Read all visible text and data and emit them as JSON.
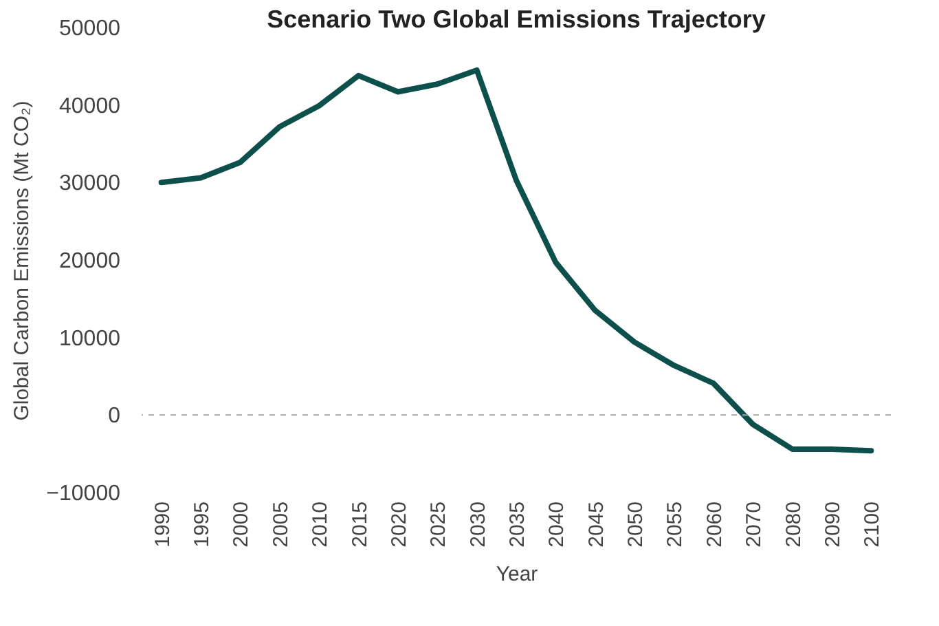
{
  "chart_data": {
    "type": "line",
    "title": "Scenario Two Global Emissions Trajectory",
    "xlabel": "Year",
    "ylabel": "Global Carbon Emissions (Mt CO₂)",
    "categories": [
      "1990",
      "1995",
      "2000",
      "2005",
      "2010",
      "2015",
      "2020",
      "2025",
      "2030",
      "2035",
      "2040",
      "2045",
      "2050",
      "2055",
      "2060",
      "2070",
      "2080",
      "2090",
      "2100"
    ],
    "series": [
      {
        "color": "#0d4f4a",
        "values": [
          30000,
          30600,
          32600,
          37200,
          39900,
          43800,
          41700,
          42700,
          44500,
          30300,
          19700,
          13500,
          9400,
          6400,
          4100,
          -1200,
          -4400,
          -4400,
          -4600
        ]
      }
    ],
    "ylim": [
      -10000,
      50000
    ],
    "yticks": [
      -10000,
      0,
      10000,
      20000,
      30000,
      40000,
      50000
    ],
    "ref_lines": [
      {
        "axis": "y",
        "value": 0,
        "color": "#aaaaaa",
        "line_style": "dashed"
      }
    ],
    "grid": false,
    "marker": "none",
    "line_style": "solid"
  }
}
